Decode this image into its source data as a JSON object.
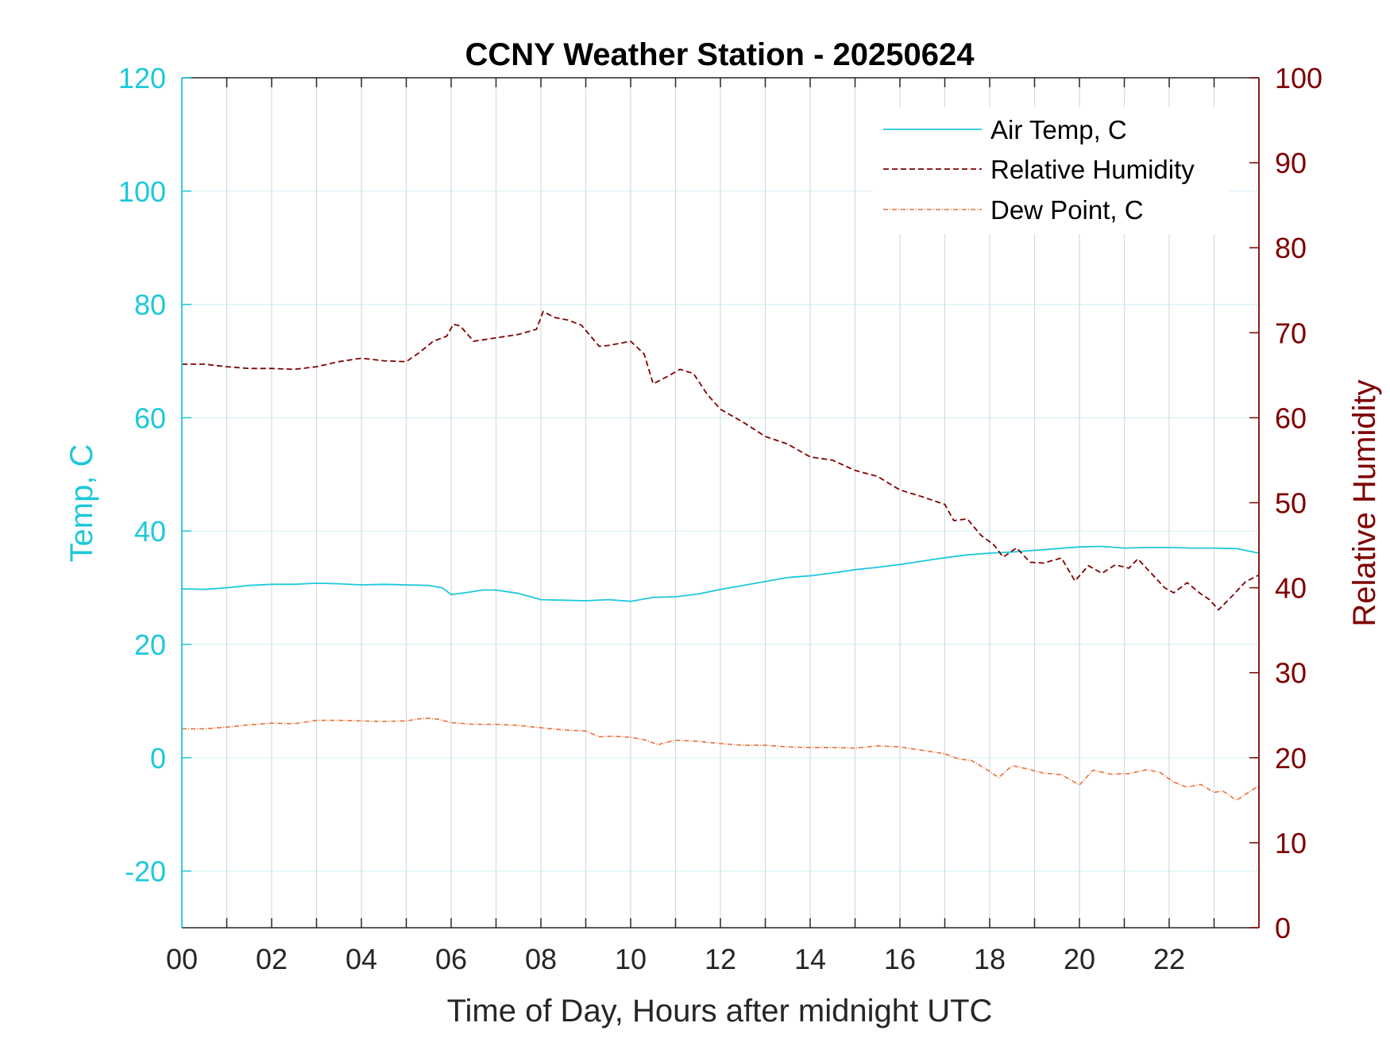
{
  "chart_data": {
    "type": "line",
    "title": "CCNY Weather Station - 20250624",
    "xlabel": "Time of Day, Hours after midnight UTC",
    "ylabel_left": "Temp, C",
    "ylabel_right": "Relative Humidity",
    "xlim": [
      0,
      24
    ],
    "ylim_left": [
      -30,
      120
    ],
    "ylim_right": [
      0,
      100
    ],
    "x_ticks": [
      "00",
      "02",
      "04",
      "06",
      "08",
      "10",
      "12",
      "14",
      "16",
      "18",
      "20",
      "22"
    ],
    "y_ticks_left": [
      "-20",
      "0",
      "20",
      "40",
      "60",
      "80",
      "100",
      "120"
    ],
    "y_ticks_right": [
      "0",
      "10",
      "20",
      "30",
      "40",
      "50",
      "60",
      "70",
      "80",
      "90",
      "100"
    ],
    "grid": true,
    "legend_position": "top-right",
    "colors": {
      "air_temp": "#1ec8dc",
      "humidity": "#7f0000",
      "dew_point": "#e8703a",
      "left_axis": "#1ec8dc",
      "right_axis": "#7f0000",
      "grid_vertical": "#d4dae0",
      "grid_horizontal": "#d8f2f7"
    },
    "series": [
      {
        "name": "Air Temp, C",
        "axis": "left",
        "style": "solid",
        "x": [
          0,
          0.5,
          1,
          1.5,
          2,
          2.5,
          3,
          3.5,
          4,
          4.5,
          5,
          5.5,
          5.8,
          6,
          6.3,
          6.7,
          7,
          7.5,
          8,
          8.5,
          9,
          9.5,
          10,
          10.5,
          11,
          11.5,
          12,
          12.5,
          13,
          13.5,
          14,
          14.5,
          15,
          15.5,
          16,
          16.5,
          17,
          17.5,
          18,
          18.5,
          19,
          19.5,
          20,
          20.5,
          21,
          21.5,
          22,
          22.5,
          23,
          23.5,
          24
        ],
        "y": [
          29.8,
          29.7,
          30.0,
          30.4,
          30.6,
          30.6,
          30.8,
          30.7,
          30.5,
          30.6,
          30.5,
          30.4,
          30.0,
          28.8,
          29.1,
          29.6,
          29.6,
          29.0,
          27.9,
          27.8,
          27.7,
          27.9,
          27.6,
          28.3,
          28.4,
          28.9,
          29.7,
          30.4,
          31.1,
          31.8,
          32.1,
          32.6,
          33.2,
          33.6,
          34.1,
          34.7,
          35.3,
          35.8,
          36.1,
          36.3,
          36.6,
          36.9,
          37.2,
          37.3,
          37.0,
          37.1,
          37.1,
          37.0,
          37.0,
          36.9,
          36.1
        ]
      },
      {
        "name": "Relative Humidity",
        "axis": "right",
        "style": "dashed",
        "x": [
          0,
          0.5,
          1,
          1.5,
          2,
          2.5,
          3,
          3.5,
          4,
          4.5,
          5,
          5.3,
          5.6,
          5.9,
          6.05,
          6.2,
          6.5,
          7,
          7.5,
          7.9,
          8.05,
          8.3,
          8.6,
          8.9,
          9.3,
          9.5,
          10,
          10.3,
          10.5,
          10.8,
          11.1,
          11.4,
          11.7,
          12,
          12.5,
          13,
          13.5,
          14,
          14.5,
          15,
          15.5,
          16,
          16.5,
          17,
          17.2,
          17.5,
          17.8,
          18.1,
          18.3,
          18.6,
          18.9,
          19.2,
          19.6,
          19.9,
          20.2,
          20.5,
          20.8,
          21.1,
          21.3,
          21.6,
          21.9,
          22.1,
          22.4,
          22.7,
          22.9,
          23.1,
          23.4,
          23.7,
          24
        ],
        "y": [
          66.3,
          66.3,
          66.0,
          65.8,
          65.8,
          65.7,
          66.0,
          66.6,
          67.0,
          66.7,
          66.6,
          67.7,
          69.0,
          69.6,
          71.0,
          70.8,
          69.0,
          69.4,
          69.8,
          70.4,
          72.5,
          71.8,
          71.5,
          70.9,
          68.4,
          68.5,
          69.0,
          67.5,
          64.0,
          64.8,
          65.7,
          65.2,
          62.8,
          61.0,
          59.5,
          57.8,
          56.9,
          55.4,
          55.0,
          53.8,
          53.1,
          51.5,
          50.7,
          49.8,
          47.9,
          48.1,
          46.2,
          45.0,
          43.6,
          44.7,
          43.0,
          42.9,
          43.5,
          40.8,
          42.6,
          41.7,
          42.7,
          42.3,
          43.4,
          41.7,
          40.0,
          39.4,
          40.6,
          39.3,
          38.6,
          37.4,
          39.0,
          40.7,
          41.5
        ]
      },
      {
        "name": "Dew Point, C",
        "axis": "left",
        "style": "dashdot",
        "x": [
          0,
          0.5,
          1,
          1.5,
          2,
          2.5,
          3,
          3.5,
          4,
          4.5,
          5,
          5.4,
          5.7,
          6,
          6.5,
          7,
          7.5,
          8,
          8.5,
          9,
          9.3,
          9.6,
          10,
          10.3,
          10.6,
          11,
          11.5,
          12,
          12.5,
          13,
          13.5,
          14,
          14.5,
          15,
          15.5,
          16,
          16.5,
          17,
          17.3,
          17.6,
          17.9,
          18.2,
          18.5,
          18.8,
          19.2,
          19.6,
          20,
          20.3,
          20.7,
          21.1,
          21.5,
          21.8,
          22.1,
          22.4,
          22.7,
          23,
          23.2,
          23.5,
          24
        ],
        "y": [
          5.1,
          5.1,
          5.4,
          5.8,
          6.1,
          6.0,
          6.6,
          6.6,
          6.5,
          6.4,
          6.5,
          7.0,
          6.8,
          6.2,
          5.9,
          5.9,
          5.7,
          5.3,
          4.9,
          4.7,
          3.7,
          3.8,
          3.6,
          3.2,
          2.3,
          3.1,
          2.9,
          2.5,
          2.2,
          2.2,
          1.9,
          1.8,
          1.8,
          1.7,
          2.1,
          1.9,
          1.3,
          0.7,
          -0.2,
          -0.5,
          -1.9,
          -3.5,
          -1.4,
          -1.9,
          -2.7,
          -3.0,
          -4.8,
          -2.2,
          -2.9,
          -2.8,
          -2.1,
          -2.6,
          -4.3,
          -5.2,
          -4.7,
          -6.1,
          -5.9,
          -7.5,
          -4.9
        ]
      }
    ]
  }
}
